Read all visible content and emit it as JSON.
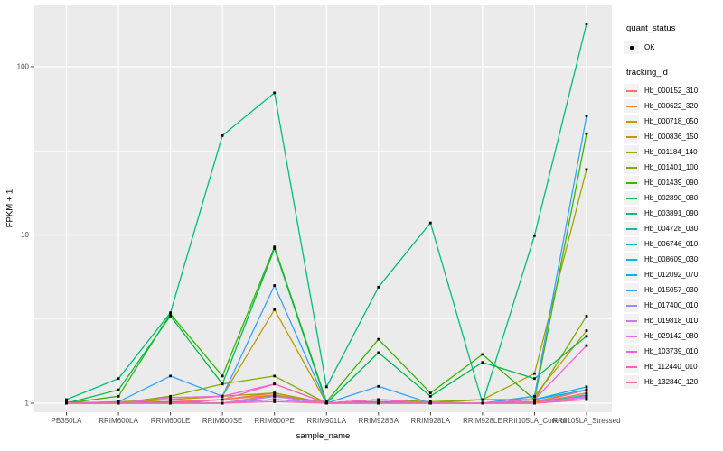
{
  "figure": {
    "background": "#FFFFFF",
    "panel_background": "#EBEBEB",
    "grid_color": "#FFFFFF",
    "axis_text_color": "#4D4D4D",
    "tick_color": "#333333",
    "point_color": "#000000",
    "legend_key_background": "#F2F2F2"
  },
  "axes": {
    "x_title": "sample_name",
    "y_title": "FPKM + 1",
    "y_tick_labels": [
      "1",
      "10",
      "100"
    ]
  },
  "legend": {
    "quant_title": "quant_status",
    "quant_items": [
      {
        "label": "OK",
        "marker": "black-point"
      }
    ],
    "tracking_title": "tracking_id"
  },
  "chart_data": {
    "type": "line",
    "title": "",
    "xlabel": "sample_name",
    "ylabel": "FPKM + 1",
    "y_scale": "log10",
    "y_ticks": [
      1,
      10,
      100
    ],
    "y_minor_ticks": [
      3.1623,
      31.623
    ],
    "ylim": [
      0.9,
      230
    ],
    "grid": true,
    "legend_position": "right",
    "point_marker": "small-black-square",
    "categories": [
      "PB350LA",
      "RRIM600LA",
      "RRIM600LE",
      "RRIM600SE",
      "RRIM600PE",
      "RRIM901LA",
      "RRIM928BA",
      "RRIM928LA",
      "RRIM928LE",
      "RRII105LA_Control",
      "RRII105LA_Stressed"
    ],
    "series": [
      {
        "name": "Hb_000152_310",
        "color": "#F8766D",
        "values": [
          1.02,
          1.0,
          1.02,
          1.05,
          1.12,
          1.0,
          1.05,
          1.0,
          1.0,
          1.02,
          1.1
        ]
      },
      {
        "name": "Hb_000622_320",
        "color": "#EA8331",
        "values": [
          1.0,
          1.0,
          1.0,
          1.05,
          1.15,
          1.0,
          1.02,
          1.0,
          1.0,
          1.0,
          1.15
        ]
      },
      {
        "name": "Hb_000718_050",
        "color": "#D89000",
        "values": [
          1.0,
          1.0,
          1.02,
          1.0,
          1.12,
          1.0,
          1.0,
          1.0,
          1.0,
          1.02,
          1.2
        ]
      },
      {
        "name": "Hb_000836_150",
        "color": "#C09B00",
        "values": [
          1.0,
          1.0,
          1.05,
          1.1,
          3.6,
          1.0,
          1.05,
          1.0,
          1.0,
          1.1,
          2.7
        ]
      },
      {
        "name": "Hb_001184_140",
        "color": "#A3A500",
        "values": [
          1.0,
          1.02,
          1.05,
          1.1,
          1.15,
          1.0,
          1.02,
          1.0,
          1.05,
          1.5,
          24.5
        ]
      },
      {
        "name": "Hb_001401_100",
        "color": "#7CAE00",
        "values": [
          1.0,
          1.0,
          1.1,
          1.3,
          1.45,
          1.0,
          1.05,
          1.02,
          1.05,
          1.05,
          3.3
        ]
      },
      {
        "name": "Hb_001439_090",
        "color": "#39B600",
        "values": [
          1.0,
          1.1,
          3.4,
          1.45,
          8.5,
          1.02,
          2.4,
          1.15,
          1.95,
          1.05,
          40.0
        ]
      },
      {
        "name": "Hb_002890_080",
        "color": "#00BB4E",
        "values": [
          1.0,
          1.2,
          3.3,
          1.3,
          8.3,
          1.0,
          2.0,
          1.1,
          1.75,
          1.4,
          2.5
        ]
      },
      {
        "name": "Hb_003891_090",
        "color": "#00BF7D",
        "values": [
          1.05,
          1.4,
          3.45,
          39.0,
          70.0,
          1.25,
          4.9,
          11.8,
          1.0,
          9.9,
          180.0
        ]
      },
      {
        "name": "Hb_004728_030",
        "color": "#00C1A3",
        "values": [
          1.0,
          1.0,
          1.0,
          1.0,
          1.1,
          1.0,
          1.0,
          1.0,
          1.0,
          1.0,
          1.12
        ]
      },
      {
        "name": "Hb_006746_010",
        "color": "#00BFC4",
        "values": [
          1.0,
          1.0,
          1.0,
          1.0,
          1.05,
          1.0,
          1.0,
          1.0,
          1.0,
          1.0,
          1.1
        ]
      },
      {
        "name": "Hb_008609_030",
        "color": "#00BAE0",
        "values": [
          1.0,
          1.0,
          1.02,
          1.0,
          1.1,
          1.0,
          1.02,
          1.0,
          1.0,
          1.05,
          1.25
        ]
      },
      {
        "name": "Hb_012092_070",
        "color": "#00B0F6",
        "values": [
          1.0,
          1.0,
          1.0,
          1.0,
          1.1,
          1.0,
          1.0,
          1.0,
          1.0,
          1.05,
          1.2
        ]
      },
      {
        "name": "Hb_015057_030",
        "color": "#35A2FF",
        "values": [
          1.0,
          1.02,
          1.45,
          1.1,
          5.0,
          1.0,
          1.26,
          1.0,
          1.0,
          1.1,
          51.0
        ]
      },
      {
        "name": "Hb_017400_010",
        "color": "#9590FF",
        "values": [
          1.0,
          1.0,
          1.0,
          1.0,
          1.05,
          1.0,
          1.0,
          1.0,
          1.0,
          1.0,
          1.05
        ]
      },
      {
        "name": "Hb_019818_010",
        "color": "#C77CFF",
        "values": [
          1.0,
          1.0,
          1.0,
          1.0,
          1.05,
          1.0,
          1.0,
          1.0,
          1.0,
          1.0,
          1.08
        ]
      },
      {
        "name": "Hb_029142_080",
        "color": "#E76BF3",
        "values": [
          1.0,
          1.0,
          1.0,
          1.0,
          1.1,
          1.0,
          1.0,
          1.0,
          1.0,
          1.0,
          1.1
        ]
      },
      {
        "name": "Hb_103739_010",
        "color": "#FA62DB",
        "values": [
          1.0,
          1.0,
          1.08,
          1.1,
          1.3,
          1.0,
          1.05,
          1.0,
          1.0,
          1.05,
          2.2
        ]
      },
      {
        "name": "Hb_112440_010",
        "color": "#FF62BC",
        "values": [
          1.0,
          1.0,
          1.0,
          1.05,
          1.3,
          1.0,
          1.05,
          1.0,
          1.0,
          1.0,
          1.2
        ]
      },
      {
        "name": "Hb_132840_120",
        "color": "#FF6A98",
        "values": [
          1.0,
          1.0,
          1.0,
          1.0,
          1.02,
          1.0,
          1.0,
          1.0,
          1.0,
          1.0,
          1.05
        ]
      }
    ]
  }
}
